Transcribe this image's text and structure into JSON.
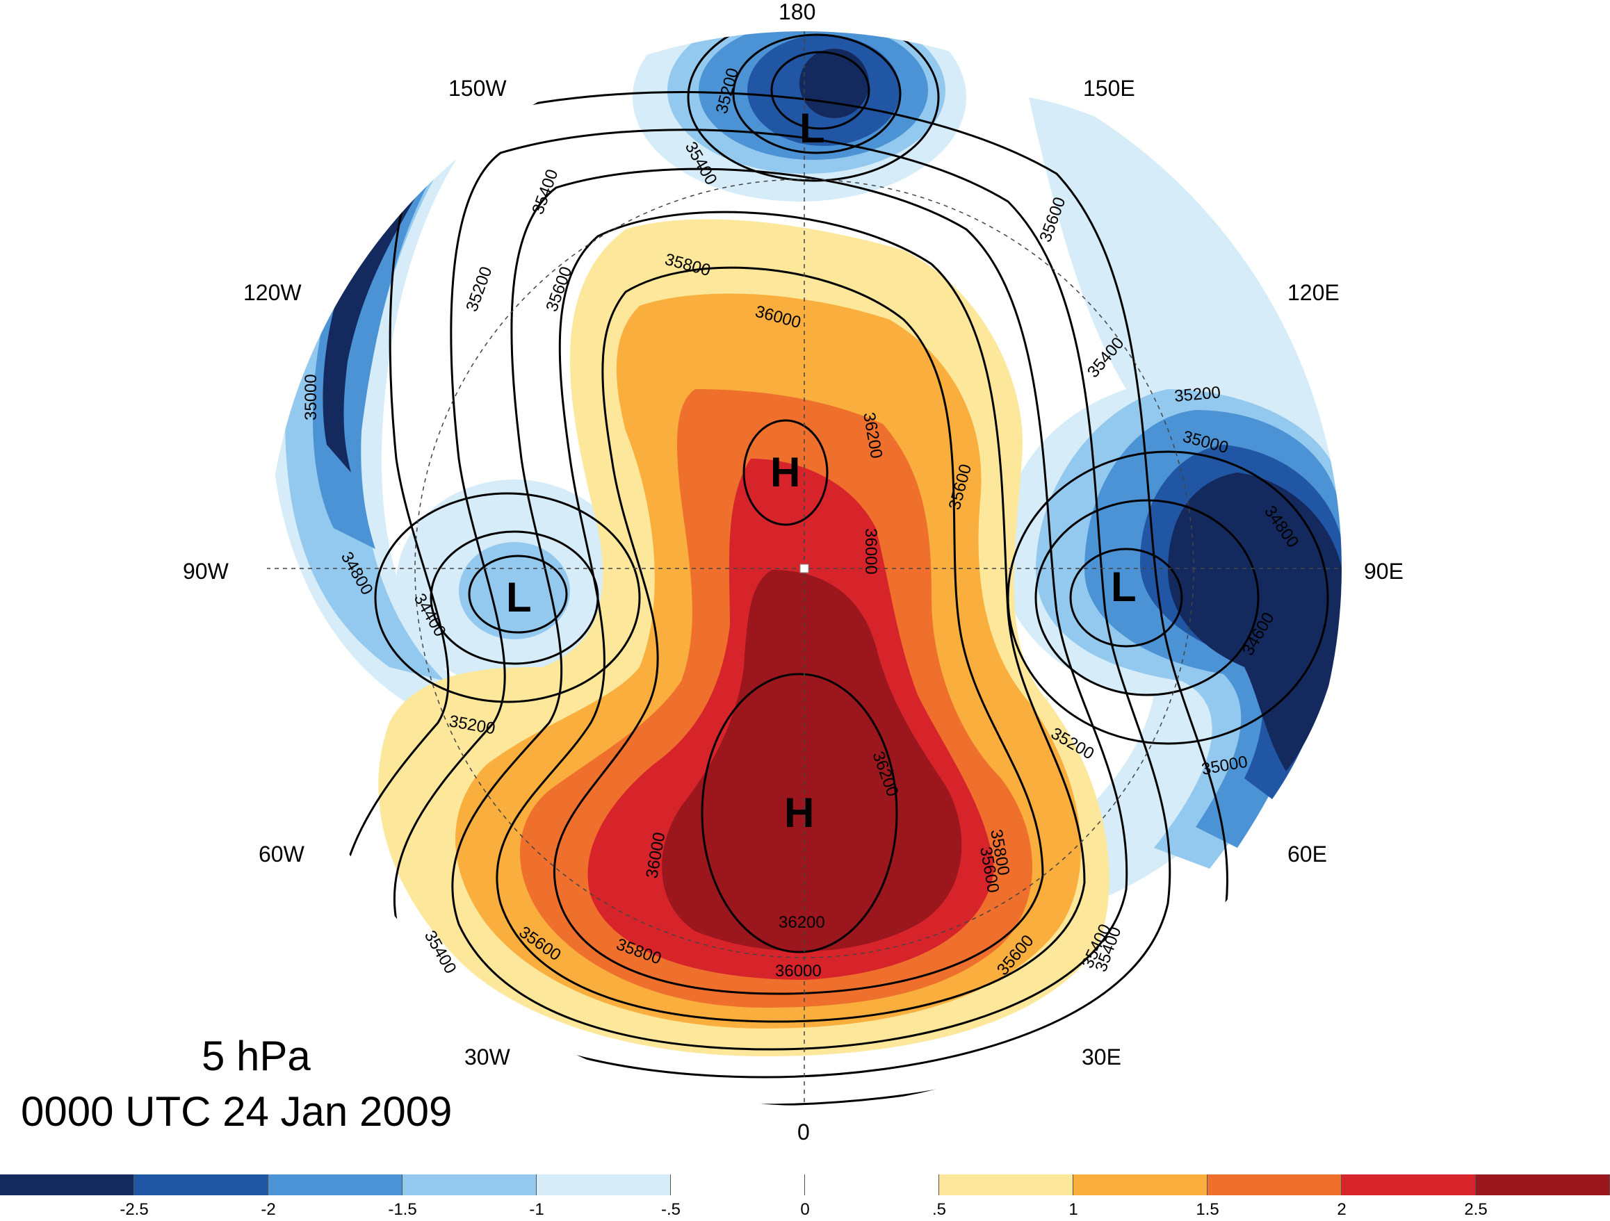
{
  "title": {
    "level": "5 hPa",
    "time": "0000 UTC 24 Jan 2009"
  },
  "longitude_labels": {
    "lon_180": "180",
    "lon_150W": "150W",
    "lon_150E": "150E",
    "lon_120W": "120W",
    "lon_120E": "120E",
    "lon_90W": "90W",
    "lon_90E": "90E",
    "lon_60W": "60W",
    "lon_60E": "60E",
    "lon_30W": "30W",
    "lon_30E": "30E",
    "lon_0": "0"
  },
  "centers": {
    "low_pacific": "L",
    "low_america": "L",
    "low_asia": "L",
    "high_north": "H",
    "high_south": "H"
  },
  "contour_labels": [
    "35200",
    "35400",
    "35400",
    "35200",
    "35600",
    "35800",
    "36000",
    "36200",
    "35000",
    "34800",
    "34400",
    "35200",
    "36000",
    "36000",
    "36200",
    "36200",
    "35600",
    "35400",
    "35200",
    "35000",
    "34800",
    "34600",
    "35600",
    "35400",
    "35200",
    "35000",
    "35400",
    "35600",
    "35800",
    "36000",
    "35800",
    "35600",
    "35400",
    "35600"
  ],
  "colorbar": {
    "colors": [
      "#142a5e",
      "#2156a5",
      "#4b93d4",
      "#93c9ee",
      "#d6ecf8",
      "#ffffff",
      "#ffffff",
      "#fce79a",
      "#f9ae3d",
      "#ef6f2d",
      "#d7242b",
      "#9c161d"
    ],
    "tick_labels": [
      "-2.5",
      "-2",
      "-1.5",
      "-1",
      "-.5",
      "0",
      ".5",
      "1",
      "1.5",
      "2",
      "2.5"
    ]
  }
}
